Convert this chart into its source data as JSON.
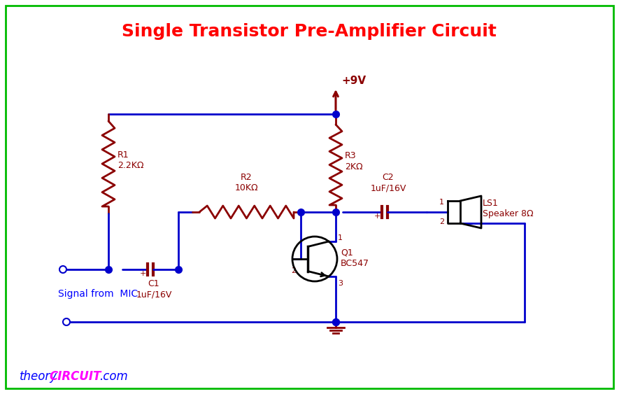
{
  "title": "Single Transistor Pre-Amplifier Circuit",
  "title_color": "#FF0000",
  "title_fontsize": 18,
  "wire_color": "#0000CC",
  "component_color": "#8B0000",
  "label_color": "#8B0000",
  "bg_color": "#FFFFFF",
  "border_color": "#00BB00",
  "watermark_theory": "theory",
  "watermark_circuit": "CIRCUIT",
  "watermark_com": ".com",
  "watermark_color_theory": "#0000FF",
  "watermark_color_circuit": "#FF00FF",
  "watermark_color_com": "#0000FF",
  "signal_label": "Signal from  MIC",
  "signal_label_color": "#0000FF",
  "vcc_label": "+9V",
  "r1_label": "R1\n2.2KΩ",
  "r2_label": "R2\n10KΩ",
  "r3_label": "R3\n2KΩ",
  "c1_label": "C1\n1uF/16V",
  "c2_label": "C2\n1uF/16V",
  "q1_label": "Q1\nBC547",
  "ls1_label": "LS1\nSpeaker 8Ω"
}
